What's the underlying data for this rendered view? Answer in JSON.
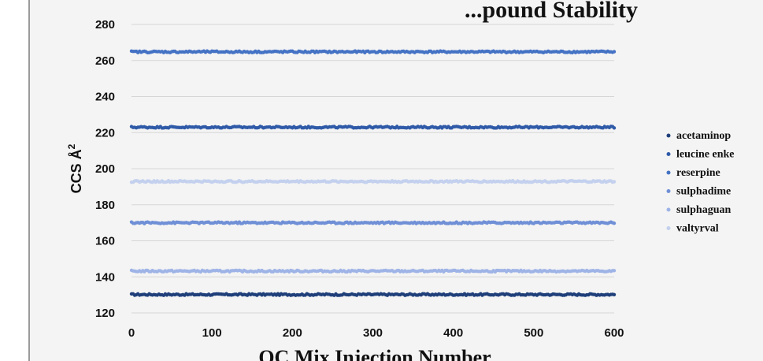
{
  "chart_data": {
    "type": "scatter",
    "title": "...pound Stability",
    "xlabel": "QC Mix Injection Number",
    "ylabel": "CCS Å",
    "ylabel_superscript": "2",
    "xlim": [
      0,
      600
    ],
    "ylim": [
      120,
      280
    ],
    "xticks": [
      "0",
      "100",
      "200",
      "300",
      "400",
      "500",
      "600"
    ],
    "yticks": [
      "120",
      "140",
      "160",
      "180",
      "200",
      "220",
      "240",
      "260",
      "280"
    ],
    "grid": "horizontal",
    "legend_position": "right",
    "series": [
      {
        "name": "acetaminop",
        "color": "#1f3f7a",
        "x_range": [
          0,
          600
        ],
        "y_mean": 130.2
      },
      {
        "name": "leucine enke",
        "color": "#2f5aa8",
        "x_range": [
          0,
          600
        ],
        "y_mean": 223.0
      },
      {
        "name": "reserpine",
        "color": "#4472c4",
        "x_range": [
          0,
          600
        ],
        "y_mean": 264.8
      },
      {
        "name": "sulphadime",
        "color": "#6f8fd6",
        "x_range": [
          0,
          600
        ],
        "y_mean": 170.0
      },
      {
        "name": "sulphaguan",
        "color": "#9eb3e6",
        "x_range": [
          0,
          600
        ],
        "y_mean": 143.2
      },
      {
        "name": "valtyrval",
        "color": "#c3d0ee",
        "x_range": [
          0,
          600
        ],
        "y_mean": 192.9
      }
    ]
  }
}
